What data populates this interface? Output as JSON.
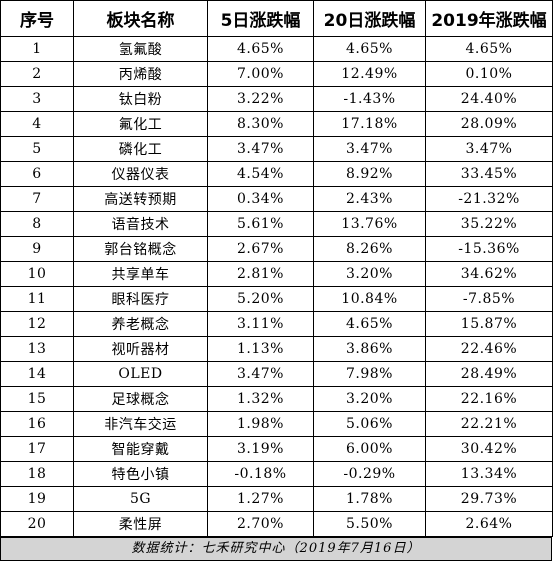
{
  "table": {
    "headers": [
      "序号",
      "板块名称",
      "5日涨跌幅",
      "20日涨跌幅",
      "2019年涨跌幅"
    ],
    "rows": [
      [
        "1",
        "氢氟酸",
        "4.65%",
        "4.65%",
        "4.65%"
      ],
      [
        "2",
        "丙烯酸",
        "7.00%",
        "12.49%",
        "0.10%"
      ],
      [
        "3",
        "钛白粉",
        "3.22%",
        "-1.43%",
        "24.40%"
      ],
      [
        "4",
        "氟化工",
        "8.30%",
        "17.18%",
        "28.09%"
      ],
      [
        "5",
        "磷化工",
        "3.47%",
        "3.47%",
        "3.47%"
      ],
      [
        "6",
        "仪器仪表",
        "4.54%",
        "8.92%",
        "33.45%"
      ],
      [
        "7",
        "高送转预期",
        "0.34%",
        "2.43%",
        "-21.32%"
      ],
      [
        "8",
        "语音技术",
        "5.61%",
        "13.76%",
        "35.22%"
      ],
      [
        "9",
        "郭台铭概念",
        "2.67%",
        "8.26%",
        "-15.36%"
      ],
      [
        "10",
        "共享单车",
        "2.81%",
        "3.20%",
        "34.62%"
      ],
      [
        "11",
        "眼科医疗",
        "5.20%",
        "10.84%",
        "-7.85%"
      ],
      [
        "12",
        "养老概念",
        "3.11%",
        "4.65%",
        "15.87%"
      ],
      [
        "13",
        "视听器材",
        "1.13%",
        "3.86%",
        "22.46%"
      ],
      [
        "14",
        "OLED",
        "3.47%",
        "7.98%",
        "28.49%"
      ],
      [
        "15",
        "足球概念",
        "1.32%",
        "3.20%",
        "22.16%"
      ],
      [
        "16",
        "非汽车交运",
        "1.98%",
        "5.06%",
        "22.21%"
      ],
      [
        "17",
        "智能穿戴",
        "3.19%",
        "6.00%",
        "30.42%"
      ],
      [
        "18",
        "特色小镇",
        "-0.18%",
        "-0.29%",
        "13.34%"
      ],
      [
        "19",
        "5G",
        "1.27%",
        "1.78%",
        "29.73%"
      ],
      [
        "20",
        "柔性屏",
        "2.70%",
        "5.50%",
        "2.64%"
      ]
    ]
  },
  "footer": {
    "source_text": "数据统计：七禾研究中心（2019年7月16日）"
  }
}
